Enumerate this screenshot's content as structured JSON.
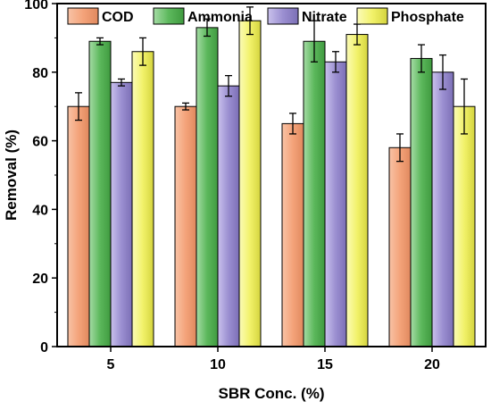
{
  "chart_data": {
    "type": "bar",
    "xlabel": "SBR Conc. (%)",
    "ylabel": "Removal (%)",
    "ylim": [
      0,
      100
    ],
    "yticks": [
      0,
      20,
      40,
      60,
      80,
      100
    ],
    "categories": [
      "5",
      "10",
      "15",
      "20"
    ],
    "legend_position": "top",
    "grid": false,
    "series": [
      {
        "name": "COD",
        "color": "#f4a37a",
        "values": [
          70,
          70,
          65,
          58
        ],
        "errors": [
          4,
          1,
          3,
          4
        ]
      },
      {
        "name": "Ammonia",
        "color": "#5cb85c",
        "values": [
          89,
          93,
          89,
          84
        ],
        "errors": [
          1,
          2.5,
          6,
          4
        ]
      },
      {
        "name": "Nitrate",
        "color": "#9b8fd1",
        "values": [
          77,
          76,
          83,
          80
        ],
        "errors": [
          1,
          3,
          3,
          5
        ]
      },
      {
        "name": "Phosphate",
        "color": "#f2f26a",
        "values": [
          86,
          95,
          91,
          70
        ],
        "errors": [
          4,
          4,
          3,
          8
        ]
      }
    ]
  }
}
